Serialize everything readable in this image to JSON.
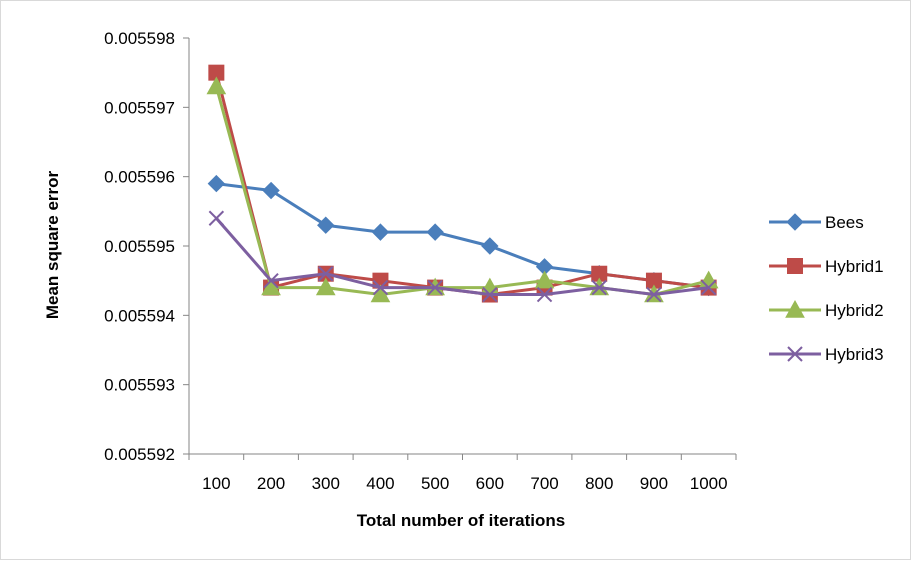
{
  "chart_data": {
    "type": "line",
    "title": "",
    "xlabel": "Total number of iterations",
    "ylabel": "Mean square error",
    "categories": [
      "100",
      "200",
      "300",
      "400",
      "500",
      "600",
      "700",
      "800",
      "900",
      "1000"
    ],
    "ylim": [
      0.005592,
      0.005598
    ],
    "yticks": [
      "0.005598",
      "0.005597",
      "0.005596",
      "0.005595",
      "0.005594",
      "0.005593",
      "0.005592"
    ],
    "grid": false,
    "legend_position": "right",
    "series": [
      {
        "name": "Bees",
        "color": "#4a7ebb",
        "marker": "diamond",
        "values": [
          0.0055959,
          0.0055958,
          0.0055953,
          0.0055952,
          0.0055952,
          0.005595,
          0.0055947,
          0.0055946,
          0.0055945,
          0.0055944
        ]
      },
      {
        "name": "Hybrid1",
        "color": "#be4b48",
        "marker": "square",
        "values": [
          0.0055975,
          0.0055944,
          0.0055946,
          0.0055945,
          0.0055944,
          0.0055943,
          0.0055944,
          0.0055946,
          0.0055945,
          0.0055944
        ]
      },
      {
        "name": "Hybrid2",
        "color": "#98b954",
        "marker": "triangle",
        "values": [
          0.0055973,
          0.0055944,
          0.0055944,
          0.0055943,
          0.0055944,
          0.0055944,
          0.0055945,
          0.0055944,
          0.0055943,
          0.0055945
        ]
      },
      {
        "name": "Hybrid3",
        "color": "#7d5fa0",
        "marker": "x",
        "values": [
          0.0055954,
          0.0055945,
          0.0055946,
          0.0055944,
          0.0055944,
          0.0055943,
          0.0055943,
          0.0055944,
          0.0055943,
          0.0055944
        ]
      }
    ]
  }
}
